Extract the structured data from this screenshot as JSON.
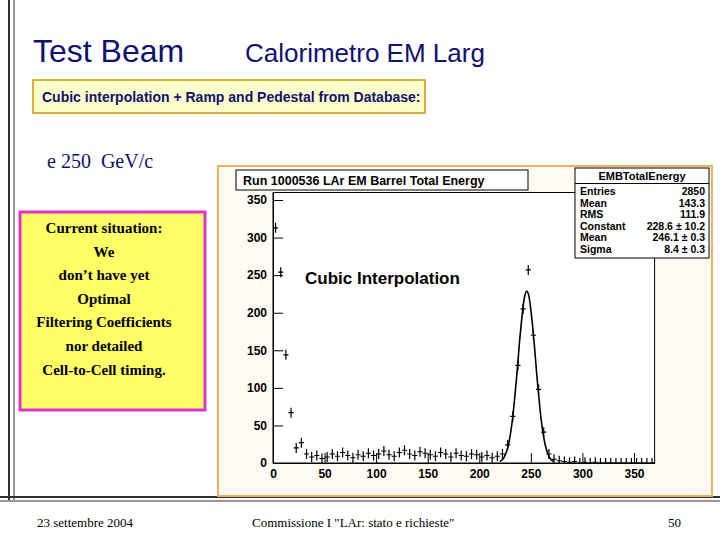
{
  "slide": {
    "title": "Test Beam",
    "subtitle": "Calorimetro EM Larg",
    "header_box": "Cubic interpolation + Ramp and Pedestal from Database:",
    "beam": "e 250  GeV/c",
    "note": [
      "Current situation:",
      "We",
      "don’t have yet",
      "Optimal",
      "Filtering Coefficients",
      "nor detailed",
      "Cell-to-Cell timing."
    ],
    "footer": {
      "date": "23 settembre 2004",
      "center": "Commissione I \"LAr: stato e richieste\"",
      "page": 50
    }
  },
  "chart_data": {
    "type": "histogram",
    "title": "Run 1000536 LAr EM Barrel Total Energy",
    "annotation": "Cubic Interpolation",
    "stats_title": "EMBTotalEnergy",
    "stats": [
      {
        "label": "Entries",
        "value": "2850"
      },
      {
        "label": "Mean",
        "value": "143.3"
      },
      {
        "label": "RMS",
        "value": "111.9"
      },
      {
        "label": "Constant",
        "value": "228.6 ± 10.2"
      },
      {
        "label": "Mean",
        "value": "246.1 ± 0.3"
      },
      {
        "label": "Sigma",
        "value": "8.4 ± 0.3"
      }
    ],
    "bins": [
      0,
      5,
      10,
      15,
      20,
      25,
      30,
      35,
      40,
      45,
      50,
      55,
      60,
      65,
      70,
      75,
      80,
      85,
      90,
      95,
      100,
      105,
      110,
      115,
      120,
      125,
      130,
      135,
      140,
      145,
      150,
      155,
      160,
      165,
      170,
      175,
      180,
      185,
      190,
      195,
      200,
      205,
      210,
      215,
      220,
      225,
      230,
      235,
      240,
      245,
      250,
      255,
      260,
      265,
      270,
      275,
      280,
      285,
      290,
      295,
      300,
      305,
      310,
      315,
      320,
      325,
      330,
      335,
      340,
      345,
      350,
      355,
      360,
      365,
      370
    ],
    "values": [
      313,
      254,
      144,
      67,
      20,
      27,
      12,
      8,
      10,
      6,
      8,
      12,
      9,
      14,
      10,
      7,
      11,
      9,
      13,
      10,
      12,
      16,
      11,
      9,
      14,
      17,
      12,
      10,
      15,
      13,
      11,
      9,
      14,
      12,
      8,
      13,
      10,
      9,
      12,
      11,
      8,
      10,
      7,
      9,
      12,
      24,
      62,
      130,
      205,
      257,
      170,
      98,
      41,
      12,
      5,
      3,
      2,
      1,
      2,
      0,
      1,
      0,
      1,
      0,
      0,
      0,
      0,
      0,
      0,
      0,
      0,
      0,
      0,
      0
    ],
    "fit": {
      "x": [
        220,
        224,
        228,
        232,
        236,
        240,
        244,
        246,
        248,
        252,
        256,
        260,
        264,
        268,
        272
      ],
      "values": [
        1.8,
        7.2,
        22.4,
        55.9,
        111.0,
        175.6,
        221.6,
        228.5,
        222.8,
        178.6,
        114.1,
        58.1,
        23.6,
        7.6,
        2.0
      ]
    },
    "color": "#000000",
    "marker": "cross",
    "xlim": [
      0,
      370
    ],
    "ylim": [
      0,
      360
    ],
    "xticks": [
      0,
      50,
      100,
      150,
      200,
      250,
      300,
      350
    ],
    "yticks": [
      0,
      50,
      100,
      150,
      200,
      250,
      300,
      350
    ]
  }
}
